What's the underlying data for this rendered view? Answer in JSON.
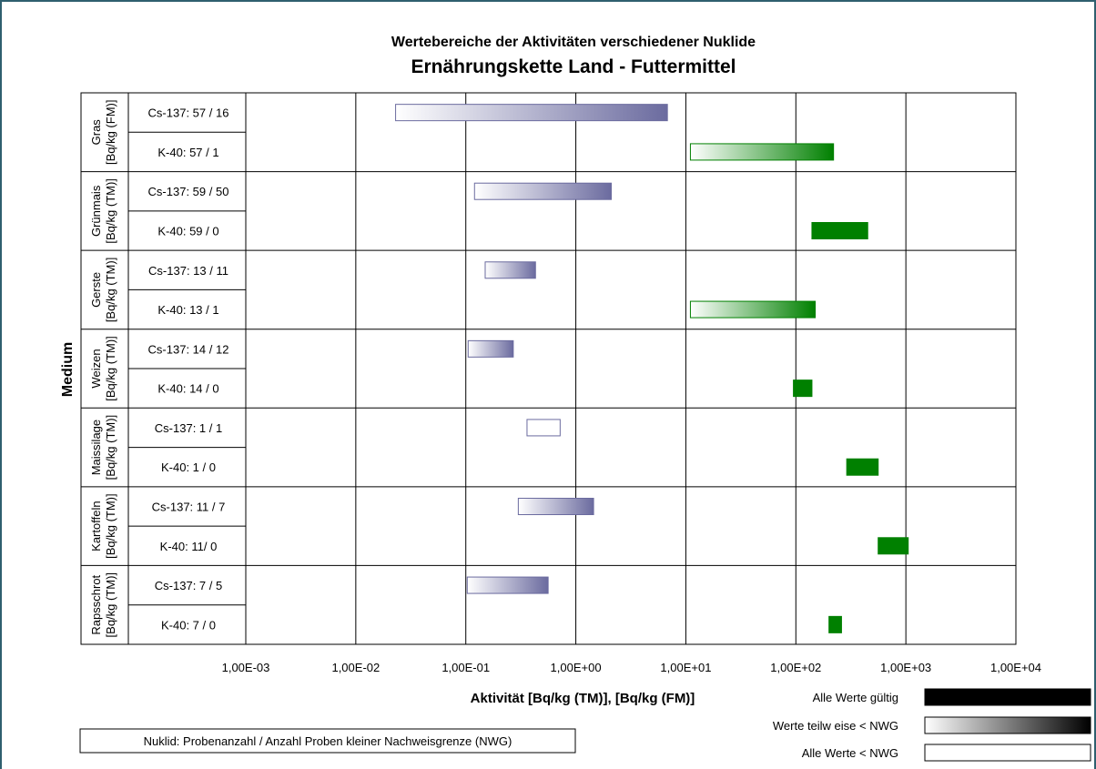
{
  "chart_data": {
    "type": "bar",
    "subtype": "floating-range horizontal bars",
    "title": "Wertebereiche der Aktivitäten verschiedener Nuklide",
    "subtitle": "Ernährungskette Land - Futtermittel",
    "xlabel": "Aktivität [Bq/kg (TM)], [Bq/kg (FM)]",
    "ylabel": "Medium",
    "x_scale": "log",
    "xlim": [
      0.001,
      10000
    ],
    "x_ticks": [
      0.001,
      0.01,
      0.1,
      1,
      10,
      100,
      1000,
      10000
    ],
    "x_tick_labels": [
      "1,00E-03",
      "1,00E-02",
      "1,00E-01",
      "1,00E+00",
      "1,00E+01",
      "1,00E+02",
      "1,00E+03",
      "1,00E+04"
    ],
    "grid": true,
    "groups": [
      {
        "medium": "Gras",
        "unit": "[Bq/kg (FM)]",
        "rows": [
          {
            "label": "Cs-137: 57 / 16",
            "min": 0.023,
            "max": 6.8,
            "fill": "partial",
            "color": "#6b6b9f"
          },
          {
            "label": "K-40: 57 / 1",
            "min": 11,
            "max": 220,
            "fill": "partial",
            "color": "#008000"
          }
        ]
      },
      {
        "medium": "Grünmais",
        "unit": "[Bq/kg (TM)]",
        "rows": [
          {
            "label": "Cs-137: 59 / 50",
            "min": 0.12,
            "max": 2.1,
            "fill": "partial",
            "color": "#6b6b9f"
          },
          {
            "label": "K-40: 59 / 0",
            "min": 140,
            "max": 450,
            "fill": "solid",
            "color": "#008000"
          }
        ]
      },
      {
        "medium": "Gerste",
        "unit": "[Bq/kg (TM)]",
        "rows": [
          {
            "label": "Cs-137: 13 / 11",
            "min": 0.15,
            "max": 0.43,
            "fill": "partial",
            "color": "#6b6b9f"
          },
          {
            "label": "K-40: 13 / 1",
            "min": 11,
            "max": 150,
            "fill": "partial",
            "color": "#008000"
          }
        ]
      },
      {
        "medium": "Weizen",
        "unit": "[Bq/kg (TM)]",
        "rows": [
          {
            "label": "Cs-137: 14 / 12",
            "min": 0.105,
            "max": 0.27,
            "fill": "partial",
            "color": "#6b6b9f"
          },
          {
            "label": "K-40: 14 / 0",
            "min": 95,
            "max": 140,
            "fill": "solid",
            "color": "#008000"
          }
        ]
      },
      {
        "medium": "Maissilage",
        "unit": "[Bq/kg (TM)]",
        "rows": [
          {
            "label": "Cs-137: 1 / 1",
            "min": 0.36,
            "max": 0.72,
            "fill": "none",
            "color": "#6b6b9f"
          },
          {
            "label": "K-40:  1 / 0",
            "min": 290,
            "max": 560,
            "fill": "solid",
            "color": "#008000"
          }
        ]
      },
      {
        "medium": "Kartoffeln",
        "unit": "[Bq/kg (TM)]",
        "rows": [
          {
            "label": "Cs-137: 11 / 7",
            "min": 0.3,
            "max": 1.45,
            "fill": "partial",
            "color": "#6b6b9f"
          },
          {
            "label": "K-40: 11/ 0",
            "min": 560,
            "max": 1050,
            "fill": "solid",
            "color": "#008000"
          }
        ]
      },
      {
        "medium": "Rapsschrot",
        "unit": "[Bq/kg (TM)]",
        "rows": [
          {
            "label": "Cs-137: 7 / 5",
            "min": 0.103,
            "max": 0.56,
            "fill": "partial",
            "color": "#6b6b9f"
          },
          {
            "label": "K-40: 7 / 0",
            "min": 200,
            "max": 260,
            "fill": "solid",
            "color": "#008000"
          }
        ]
      }
    ],
    "legend": [
      {
        "label": "Alle Werte gültig",
        "fill": "solid"
      },
      {
        "label": "Werte teilw eise < NWG",
        "fill": "partial"
      },
      {
        "label": "Alle Werte < NWG",
        "fill": "none"
      }
    ],
    "note": "Nuklid: Probenanzahl / Anzahl Proben kleiner Nachweisgrenze (NWG)"
  }
}
